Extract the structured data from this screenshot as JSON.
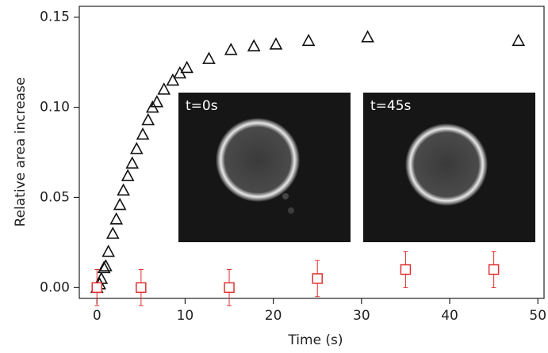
{
  "chart_data": {
    "type": "scatter",
    "x_label": "Time (s)",
    "y_label": "Relative area increase",
    "xlim": [
      -2,
      50.7
    ],
    "ylim": [
      -0.006,
      0.156
    ],
    "xticks": [
      0,
      10,
      20,
      30,
      40,
      50
    ],
    "yticks": [
      {
        "value": 0,
        "label": "0.00"
      },
      {
        "value": 0.05,
        "label": "0.05"
      },
      {
        "value": 0.1,
        "label": "0.10"
      },
      {
        "value": 0.15,
        "label": "0.15"
      }
    ],
    "series": [
      {
        "color": "#111111",
        "marker": "triangle",
        "x": [
          0,
          0.3,
          0.5,
          0.8,
          1,
          1.3,
          1.8,
          2.2,
          2.6,
          3,
          3.5,
          4,
          4.5,
          5.2,
          5.8,
          6.3,
          6.8,
          7.6,
          8.6,
          9.4,
          10.2,
          12.7,
          15.2,
          17.8,
          20.3,
          24,
          30.7,
          47.8
        ],
        "values": [
          0,
          0.002,
          0.005,
          0.011,
          0.012,
          0.02,
          0.03,
          0.038,
          0.046,
          0.054,
          0.062,
          0.069,
          0.077,
          0.085,
          0.093,
          0.1,
          0.103,
          0.11,
          0.115,
          0.119,
          0.122,
          0.127,
          0.132,
          0.134,
          0.135,
          0.137,
          0.139,
          0.137
        ]
      },
      {
        "color": "#e03030",
        "marker": "square",
        "x": [
          0,
          5,
          15,
          25,
          35,
          45
        ],
        "values": [
          0,
          0,
          0,
          0.005,
          0.01,
          0.01
        ],
        "errors": [
          0.01,
          0.01,
          0.01,
          0.01,
          0.01,
          0.01
        ]
      }
    ],
    "annotations": [
      "t=0s",
      "t=45s"
    ]
  }
}
